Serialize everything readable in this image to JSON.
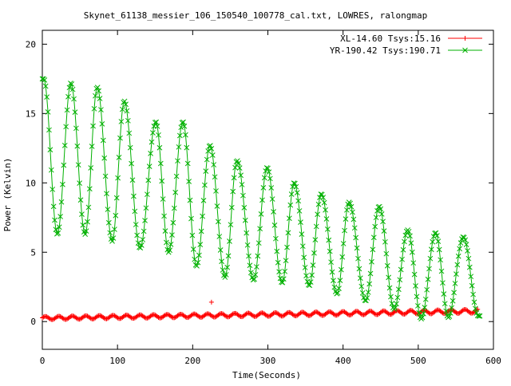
{
  "chart_data": {
    "type": "line",
    "title": "Skynet_61138_messier_106_150540_100778_cal.txt, LOWRES, ralongmap",
    "xlabel": "Time(Seconds)",
    "ylabel": "Power (Kelvin)",
    "xlim": [
      0,
      600
    ],
    "ylim": [
      -2,
      21
    ],
    "x_ticks": [
      0,
      100,
      200,
      300,
      400,
      500,
      600
    ],
    "y_ticks": [
      0,
      5,
      10,
      15,
      20
    ],
    "grid": false,
    "legend_position": "top-right",
    "series": [
      {
        "name": "XL-14.60 Tsys:15.16",
        "color": "#ff0000",
        "marker": "plus",
        "generator": {
          "t_start": 0,
          "t_end": 580,
          "dt": 1.5,
          "period": 18,
          "baseline_start": 0.25,
          "baseline_end": 0.75,
          "amplitude_start": 0.12,
          "amplitude_end": 0.14
        },
        "extra_points": [
          [
            225,
            1.4
          ]
        ]
      },
      {
        "name": "YR-190.42 Tsys:190.71",
        "color": "#00b000",
        "marker": "x",
        "generator": {
          "t_start": 0,
          "t_end": 582,
          "dt": 1.5,
          "peaks": [
            [
              2,
              17.5
            ],
            [
              38,
              17.2
            ],
            [
              73,
              16.9
            ],
            [
              109,
              15.9
            ],
            [
              151,
              14.4
            ],
            [
              187,
              14.4
            ],
            [
              223,
              12.7
            ],
            [
              259,
              11.6
            ],
            [
              299,
              11.1
            ],
            [
              335,
              10
            ],
            [
              371,
              9.2
            ],
            [
              408,
              8.6
            ],
            [
              448,
              8.3
            ],
            [
              486,
              6.6
            ],
            [
              523,
              6.4
            ],
            [
              560,
              6.1
            ]
          ],
          "troughs": [
            [
              20,
              6.3
            ],
            [
              57,
              6.3
            ],
            [
              93,
              5.8
            ],
            [
              130,
              5.3
            ],
            [
              168,
              5.0
            ],
            [
              205,
              4.0
            ],
            [
              243,
              3.2
            ],
            [
              281,
              3.0
            ],
            [
              319,
              2.8
            ],
            [
              355,
              2.6
            ],
            [
              392,
              2.0
            ],
            [
              430,
              1.5
            ],
            [
              468,
              0.9
            ],
            [
              504,
              0.2
            ],
            [
              540,
              0.3
            ],
            [
              580,
              0.4
            ]
          ]
        }
      }
    ]
  }
}
